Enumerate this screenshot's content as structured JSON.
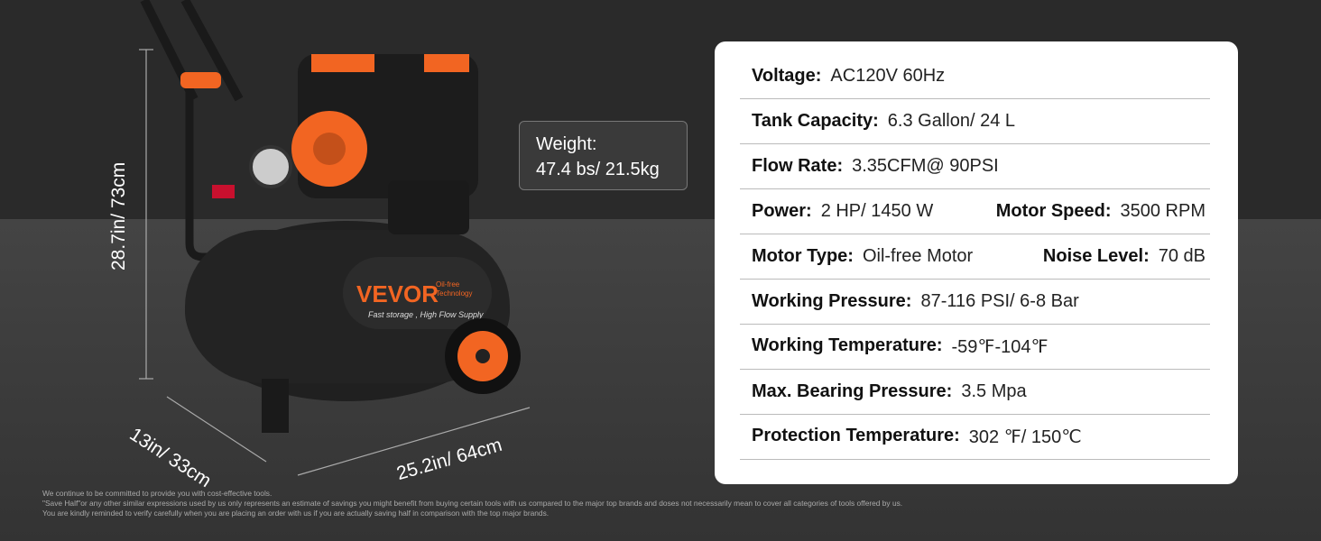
{
  "dimensions": {
    "height": "28.7in/ 73cm",
    "depth": "13in/ 33cm",
    "length": "25.2in/ 64cm"
  },
  "weight": {
    "label": "Weight:",
    "value": "47.4 bs/ 21.5kg"
  },
  "product": {
    "brand": "VEVOR",
    "badge": "Oil-free Technology",
    "tagline": "Fast storage , High Flow Supply",
    "colors": {
      "body": "#1e1e1e",
      "accent": "#f26522"
    }
  },
  "specs": [
    {
      "items": [
        {
          "label": "Voltage:",
          "value": "AC120V 60Hz"
        }
      ]
    },
    {
      "items": [
        {
          "label": "Tank Capacity:",
          "value": "6.3 Gallon/ 24 L"
        }
      ]
    },
    {
      "items": [
        {
          "label": "Flow Rate:",
          "value": "3.35CFM@ 90PSI"
        }
      ]
    },
    {
      "items": [
        {
          "label": "Power:",
          "value": "2 HP/ 1450 W"
        },
        {
          "label": "Motor Speed:",
          "value": "3500 RPM"
        }
      ]
    },
    {
      "items": [
        {
          "label": "Motor Type:",
          "value": "Oil-free Motor"
        },
        {
          "label": "Noise Level:",
          "value": "70 dB"
        }
      ]
    },
    {
      "items": [
        {
          "label": "Working Pressure:",
          "value": "87-116 PSI/ 6-8 Bar"
        }
      ]
    },
    {
      "items": [
        {
          "label": "Working Temperature:",
          "value": "-59℉-104℉"
        }
      ]
    },
    {
      "items": [
        {
          "label": "Max. Bearing Pressure:",
          "value": "3.5 Mpa"
        }
      ]
    },
    {
      "items": [
        {
          "label": "Protection Temperature:",
          "value": "302 ℉/ 150℃"
        }
      ]
    }
  ],
  "disclaimer": [
    "We continue to be committed to provide you with cost-effective tools.",
    "\"Save Half\"or any other similar expressions used by us only represents an estimate of savings you might benefit from buying certain tools with us compared to the major top brands and doses not necessarily mean to cover all categories of tools offered by us.",
    "You are kindly reminded to verify carefully when you are placing an order with us if you are actually saving half in comparison with the top major brands."
  ]
}
